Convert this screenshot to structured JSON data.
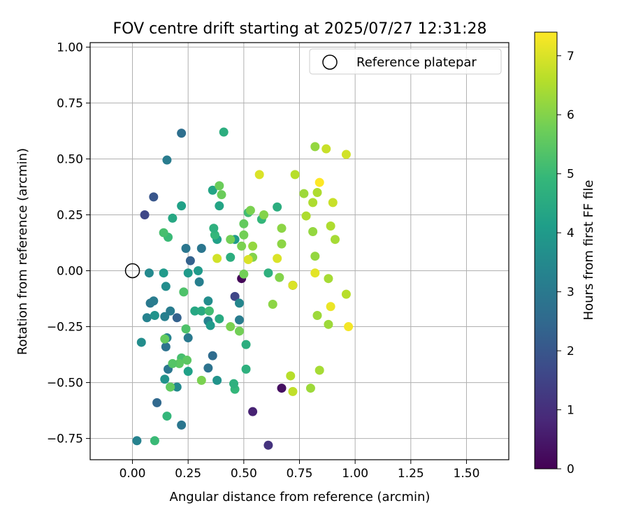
{
  "chart_data": {
    "type": "scatter",
    "title": "FOV centre drift starting at 2025/07/27 12:31:28",
    "xlabel": "Angular distance from reference (arcmin)",
    "ylabel": "Rotation from reference (arcmin)",
    "xlim": [
      -0.19,
      1.69
    ],
    "ylim": [
      -0.845,
      1.02
    ],
    "x_ticks": [
      0.0,
      0.25,
      0.5,
      0.75,
      1.0,
      1.25,
      1.5
    ],
    "x_tick_labels": [
      "0.00",
      "0.25",
      "0.50",
      "0.75",
      "1.00",
      "1.25",
      "1.50"
    ],
    "y_ticks": [
      -0.75,
      -0.5,
      -0.25,
      0.0,
      0.25,
      0.5,
      0.75,
      1.0
    ],
    "y_tick_labels": [
      "−0.75",
      "−0.50",
      "−0.25",
      "0.00",
      "0.25",
      "0.50",
      "0.75",
      "1.00"
    ],
    "grid": true,
    "legend": {
      "location": "top-right",
      "entries": [
        {
          "label": "Reference platepar",
          "marker": "open-circle"
        }
      ]
    },
    "reference_point": {
      "x": 0.0,
      "y": 0.0
    },
    "colorbar": {
      "label": "Hours from first FF file",
      "colormap": "viridis",
      "range": [
        0,
        7.4
      ],
      "ticks": [
        0,
        1,
        2,
        3,
        4,
        5,
        6,
        7
      ],
      "tick_labels": [
        "0",
        "1",
        "2",
        "3",
        "4",
        "5",
        "6",
        "7"
      ],
      "stops": [
        "#440154",
        "#482878",
        "#3e4989",
        "#31688e",
        "#26828e",
        "#1f9e89",
        "#35b779",
        "#6ece58",
        "#b5de2b",
        "#fde725"
      ]
    },
    "points": [
      {
        "x": 0.49,
        "y": -0.035,
        "c": 0.1
      },
      {
        "x": 0.67,
        "y": -0.525,
        "c": 0.3
      },
      {
        "x": 0.54,
        "y": -0.63,
        "c": 0.7
      },
      {
        "x": 0.61,
        "y": -0.78,
        "c": 1.1
      },
      {
        "x": 0.72,
        "y": -0.065,
        "c": 0.2
      },
      {
        "x": 0.46,
        "y": -0.115,
        "c": 1.6
      },
      {
        "x": 0.055,
        "y": 0.25,
        "c": 1.6
      },
      {
        "x": 0.095,
        "y": 0.33,
        "c": 2.0
      },
      {
        "x": 0.26,
        "y": 0.045,
        "c": 2.3
      },
      {
        "x": 0.2,
        "y": -0.21,
        "c": 2.3
      },
      {
        "x": 0.11,
        "y": -0.59,
        "c": 2.5
      },
      {
        "x": 0.22,
        "y": 0.615,
        "c": 2.7
      },
      {
        "x": 0.155,
        "y": 0.495,
        "c": 3.1
      },
      {
        "x": 0.36,
        "y": -0.38,
        "c": 2.6
      },
      {
        "x": 0.34,
        "y": -0.435,
        "c": 2.8
      },
      {
        "x": 0.22,
        "y": -0.69,
        "c": 2.9
      },
      {
        "x": 0.15,
        "y": -0.34,
        "c": 2.8
      },
      {
        "x": 0.16,
        "y": -0.44,
        "c": 2.9
      },
      {
        "x": 0.24,
        "y": 0.1,
        "c": 2.9
      },
      {
        "x": 0.31,
        "y": 0.1,
        "c": 2.9
      },
      {
        "x": 0.25,
        "y": -0.3,
        "c": 3.0
      },
      {
        "x": 0.17,
        "y": -0.18,
        "c": 3.1
      },
      {
        "x": 0.08,
        "y": -0.145,
        "c": 3.0
      },
      {
        "x": 0.065,
        "y": -0.21,
        "c": 3.3
      },
      {
        "x": 0.145,
        "y": -0.205,
        "c": 3.2
      },
      {
        "x": 0.095,
        "y": -0.135,
        "c": 3.1
      },
      {
        "x": 0.3,
        "y": -0.05,
        "c": 3.2
      },
      {
        "x": 0.48,
        "y": -0.22,
        "c": 3.1
      },
      {
        "x": 0.2,
        "y": -0.52,
        "c": 3.5
      },
      {
        "x": 0.155,
        "y": -0.3,
        "c": 3.3
      },
      {
        "x": 0.02,
        "y": -0.76,
        "c": 3.3
      },
      {
        "x": 0.48,
        "y": -0.145,
        "c": 3.4
      },
      {
        "x": 0.075,
        "y": -0.01,
        "c": 3.5
      },
      {
        "x": 0.15,
        "y": -0.07,
        "c": 3.6
      },
      {
        "x": 0.34,
        "y": -0.225,
        "c": 3.3
      },
      {
        "x": 0.34,
        "y": -0.135,
        "c": 3.6
      },
      {
        "x": 0.04,
        "y": -0.32,
        "c": 3.6
      },
      {
        "x": 0.145,
        "y": -0.485,
        "c": 3.8
      },
      {
        "x": 0.38,
        "y": -0.49,
        "c": 3.8
      },
      {
        "x": 0.1,
        "y": -0.2,
        "c": 3.8
      },
      {
        "x": 0.14,
        "y": -0.01,
        "c": 4.0
      },
      {
        "x": 0.295,
        "y": 0.0,
        "c": 4.0
      },
      {
        "x": 0.25,
        "y": -0.01,
        "c": 4.0
      },
      {
        "x": 0.17,
        "y": -0.52,
        "c": 4.1
      },
      {
        "x": 0.25,
        "y": -0.45,
        "c": 4.2
      },
      {
        "x": 0.36,
        "y": 0.36,
        "c": 4.3
      },
      {
        "x": 0.35,
        "y": -0.245,
        "c": 4.0
      },
      {
        "x": 0.22,
        "y": 0.29,
        "c": 4.2
      },
      {
        "x": 0.28,
        "y": -0.18,
        "c": 4.4
      },
      {
        "x": 0.38,
        "y": 0.14,
        "c": 4.2
      },
      {
        "x": 0.46,
        "y": 0.14,
        "c": 4.0
      },
      {
        "x": 0.39,
        "y": 0.29,
        "c": 4.3
      },
      {
        "x": 0.44,
        "y": 0.06,
        "c": 4.6
      },
      {
        "x": 0.18,
        "y": 0.235,
        "c": 4.4
      },
      {
        "x": 0.31,
        "y": -0.18,
        "c": 4.5
      },
      {
        "x": 0.39,
        "y": -0.215,
        "c": 4.5
      },
      {
        "x": 0.41,
        "y": 0.62,
        "c": 4.6
      },
      {
        "x": 0.51,
        "y": -0.33,
        "c": 4.6
      },
      {
        "x": 0.51,
        "y": -0.44,
        "c": 4.7
      },
      {
        "x": 0.46,
        "y": -0.53,
        "c": 4.9
      },
      {
        "x": 0.455,
        "y": -0.505,
        "c": 4.7
      },
      {
        "x": 0.61,
        "y": -0.01,
        "c": 4.7
      },
      {
        "x": 0.65,
        "y": 0.285,
        "c": 4.6
      },
      {
        "x": 0.58,
        "y": 0.23,
        "c": 4.9
      },
      {
        "x": 0.37,
        "y": 0.16,
        "c": 4.9
      },
      {
        "x": 0.365,
        "y": 0.19,
        "c": 4.7
      },
      {
        "x": 0.155,
        "y": -0.65,
        "c": 4.9
      },
      {
        "x": 0.1,
        "y": -0.76,
        "c": 5.0
      },
      {
        "x": 0.345,
        "y": -0.18,
        "c": 5.1
      },
      {
        "x": 0.16,
        "y": 0.15,
        "c": 5.0
      },
      {
        "x": 0.14,
        "y": 0.17,
        "c": 5.2
      },
      {
        "x": 0.52,
        "y": 0.26,
        "c": 5.1
      },
      {
        "x": 0.22,
        "y": -0.39,
        "c": 5.2
      },
      {
        "x": 0.23,
        "y": -0.095,
        "c": 5.3
      },
      {
        "x": 0.24,
        "y": -0.26,
        "c": 5.3
      },
      {
        "x": 0.21,
        "y": -0.415,
        "c": 5.5
      },
      {
        "x": 0.18,
        "y": -0.415,
        "c": 5.4
      },
      {
        "x": 0.245,
        "y": -0.4,
        "c": 5.5
      },
      {
        "x": 0.17,
        "y": -0.52,
        "c": 5.6
      },
      {
        "x": 0.145,
        "y": -0.305,
        "c": 5.6
      },
      {
        "x": 0.39,
        "y": 0.38,
        "c": 5.7
      },
      {
        "x": 0.4,
        "y": 0.34,
        "c": 5.7
      },
      {
        "x": 0.5,
        "y": 0.21,
        "c": 5.6
      },
      {
        "x": 0.5,
        "y": 0.16,
        "c": 5.8
      },
      {
        "x": 0.49,
        "y": 0.11,
        "c": 5.9
      },
      {
        "x": 0.53,
        "y": 0.27,
        "c": 5.9
      },
      {
        "x": 0.44,
        "y": 0.14,
        "c": 5.8
      },
      {
        "x": 0.48,
        "y": -0.27,
        "c": 5.8
      },
      {
        "x": 0.44,
        "y": -0.25,
        "c": 5.9
      },
      {
        "x": 0.31,
        "y": -0.49,
        "c": 5.9
      },
      {
        "x": 0.5,
        "y": -0.015,
        "c": 5.8
      },
      {
        "x": 0.54,
        "y": 0.06,
        "c": 6.0
      },
      {
        "x": 0.59,
        "y": 0.25,
        "c": 6.0
      },
      {
        "x": 0.67,
        "y": 0.19,
        "c": 6.1
      },
      {
        "x": 0.67,
        "y": 0.12,
        "c": 6.1
      },
      {
        "x": 0.66,
        "y": -0.03,
        "c": 6.0
      },
      {
        "x": 0.63,
        "y": -0.15,
        "c": 6.1
      },
      {
        "x": 0.54,
        "y": 0.11,
        "c": 6.2
      },
      {
        "x": 0.82,
        "y": 0.555,
        "c": 6.2
      },
      {
        "x": 0.77,
        "y": 0.345,
        "c": 6.3
      },
      {
        "x": 0.81,
        "y": 0.175,
        "c": 6.2
      },
      {
        "x": 0.82,
        "y": 0.065,
        "c": 6.2
      },
      {
        "x": 0.83,
        "y": -0.2,
        "c": 6.3
      },
      {
        "x": 0.8,
        "y": -0.525,
        "c": 6.3
      },
      {
        "x": 0.88,
        "y": -0.24,
        "c": 6.3
      },
      {
        "x": 0.88,
        "y": -0.035,
        "c": 6.4
      },
      {
        "x": 0.84,
        "y": -0.445,
        "c": 6.4
      },
      {
        "x": 0.91,
        "y": 0.14,
        "c": 6.4
      },
      {
        "x": 0.89,
        "y": 0.2,
        "c": 6.5
      },
      {
        "x": 0.78,
        "y": 0.245,
        "c": 6.5
      },
      {
        "x": 0.81,
        "y": 0.305,
        "c": 6.5
      },
      {
        "x": 0.83,
        "y": 0.35,
        "c": 6.5
      },
      {
        "x": 0.73,
        "y": 0.43,
        "c": 6.6
      },
      {
        "x": 0.96,
        "y": -0.105,
        "c": 6.6
      },
      {
        "x": 0.71,
        "y": -0.47,
        "c": 6.6
      },
      {
        "x": 0.72,
        "y": -0.54,
        "c": 6.7
      },
      {
        "x": 0.9,
        "y": 0.305,
        "c": 6.8
      },
      {
        "x": 0.87,
        "y": 0.545,
        "c": 6.8
      },
      {
        "x": 0.96,
        "y": 0.52,
        "c": 6.9
      },
      {
        "x": 0.38,
        "y": 0.055,
        "c": 6.9
      },
      {
        "x": 0.52,
        "y": 0.05,
        "c": 7.0
      },
      {
        "x": 0.57,
        "y": 0.43,
        "c": 7.0
      },
      {
        "x": 0.65,
        "y": 0.055,
        "c": 7.0
      },
      {
        "x": 0.72,
        "y": -0.065,
        "c": 7.0
      },
      {
        "x": 0.82,
        "y": -0.01,
        "c": 7.1
      },
      {
        "x": 0.89,
        "y": -0.16,
        "c": 7.2
      },
      {
        "x": 0.97,
        "y": -0.25,
        "c": 7.3
      },
      {
        "x": 0.84,
        "y": 0.395,
        "c": 7.4
      }
    ]
  }
}
